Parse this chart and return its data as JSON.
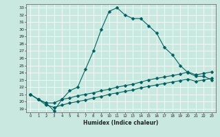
{
  "title": "",
  "xlabel": "Humidex (Indice chaleur)",
  "xlim": [
    -0.5,
    23.5
  ],
  "ylim": [
    18.5,
    33.5
  ],
  "xticks": [
    0,
    1,
    2,
    3,
    4,
    5,
    6,
    7,
    8,
    9,
    10,
    11,
    12,
    13,
    14,
    15,
    16,
    17,
    18,
    19,
    20,
    21,
    22,
    23
  ],
  "yticks": [
    19,
    20,
    21,
    22,
    23,
    24,
    25,
    26,
    27,
    28,
    29,
    30,
    31,
    32,
    33
  ],
  "bg_color": "#c8e8e0",
  "grid_color": "#ffffff",
  "line_color": "#006060",
  "line1_x": [
    0,
    1,
    2,
    3,
    4,
    5,
    6,
    7,
    8,
    9,
    10,
    11,
    12,
    13,
    14,
    15,
    16,
    17,
    18,
    19,
    20,
    21,
    22,
    23
  ],
  "line1_y": [
    21.0,
    20.3,
    19.8,
    18.7,
    20.3,
    21.5,
    22.0,
    24.5,
    27.0,
    30.0,
    32.5,
    33.0,
    32.0,
    31.5,
    31.5,
    30.5,
    29.5,
    27.5,
    26.5,
    25.0,
    24.0,
    23.5,
    23.5,
    23.0
  ],
  "line2_x": [
    0,
    1,
    2,
    3,
    4,
    5,
    6,
    7,
    8,
    9,
    10,
    11,
    12,
    13,
    14,
    15,
    16,
    17,
    18,
    19,
    20,
    21,
    22,
    23
  ],
  "line2_y": [
    21.0,
    20.3,
    19.8,
    19.8,
    20.3,
    20.5,
    20.8,
    21.0,
    21.2,
    21.5,
    21.7,
    22.0,
    22.2,
    22.4,
    22.7,
    23.0,
    23.2,
    23.4,
    23.6,
    23.8,
    24.1,
    23.7,
    23.9,
    24.1
  ],
  "line3_x": [
    0,
    1,
    2,
    3,
    4,
    5,
    6,
    7,
    8,
    9,
    10,
    11,
    12,
    13,
    14,
    15,
    16,
    17,
    18,
    19,
    20,
    21,
    22,
    23
  ],
  "line3_y": [
    21.0,
    20.3,
    19.5,
    19.2,
    19.5,
    19.8,
    20.0,
    20.2,
    20.5,
    20.7,
    21.0,
    21.2,
    21.4,
    21.6,
    21.9,
    22.1,
    22.3,
    22.5,
    22.7,
    22.9,
    23.1,
    22.8,
    23.0,
    23.2
  ],
  "markersize": 2.5
}
